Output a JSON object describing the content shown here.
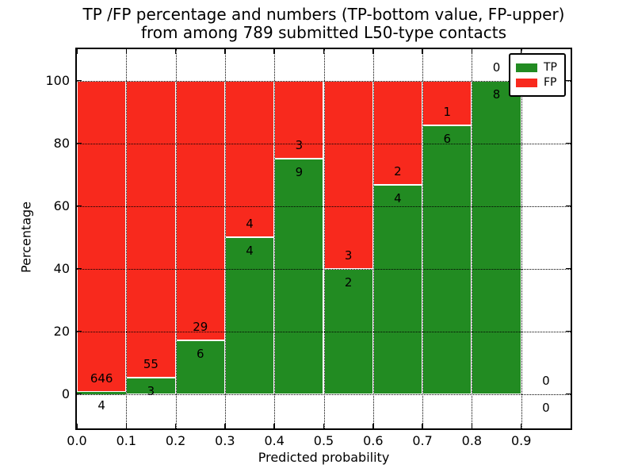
{
  "figure": {
    "title_line1": "TP /FP percentage and numbers (TP-bottom value, FP-upper)",
    "title_line2": "from among 789 submitted L50-type contacts",
    "xlabel": "Predicted probability",
    "ylabel": "Percentage"
  },
  "chart_data": {
    "type": "bar",
    "stacked": true,
    "title": "TP /FP percentage and numbers (TP-bottom value, FP-upper) from among 789 submitted L50-type contacts",
    "xlabel": "Predicted probability",
    "ylabel": "Percentage",
    "total_contacts": 789,
    "xlim": [
      0.0,
      1.0
    ],
    "ylim": [
      -11,
      110
    ],
    "xticks": [
      0.0,
      0.1,
      0.2,
      0.3,
      0.4,
      0.5,
      0.6,
      0.7,
      0.8,
      0.9
    ],
    "yticks": [
      0,
      20,
      40,
      60,
      80,
      100
    ],
    "grid": true,
    "grid_style": "dotted",
    "bar_edge_color": "#ffffff",
    "series": [
      {
        "name": "TP",
        "color": "#228b22"
      },
      {
        "name": "FP",
        "color": "#f8291d"
      }
    ],
    "legend": {
      "position": "upper right",
      "entries": [
        "TP",
        "FP"
      ]
    },
    "bins": [
      {
        "x0": 0.0,
        "x1": 0.1,
        "tp": 4,
        "fp": 646,
        "tp_pct": 0.62
      },
      {
        "x0": 0.1,
        "x1": 0.2,
        "tp": 3,
        "fp": 55,
        "tp_pct": 5.17
      },
      {
        "x0": 0.2,
        "x1": 0.3,
        "tp": 6,
        "fp": 29,
        "tp_pct": 17.14
      },
      {
        "x0": 0.3,
        "x1": 0.4,
        "tp": 4,
        "fp": 4,
        "tp_pct": 50.0
      },
      {
        "x0": 0.4,
        "x1": 0.5,
        "tp": 9,
        "fp": 3,
        "tp_pct": 75.0
      },
      {
        "x0": 0.5,
        "x1": 0.6,
        "tp": 2,
        "fp": 3,
        "tp_pct": 40.0
      },
      {
        "x0": 0.6,
        "x1": 0.7,
        "tp": 4,
        "fp": 2,
        "tp_pct": 66.67
      },
      {
        "x0": 0.7,
        "x1": 0.8,
        "tp": 6,
        "fp": 1,
        "tp_pct": 85.71
      },
      {
        "x0": 0.8,
        "x1": 0.9,
        "tp": 8,
        "fp": 0,
        "tp_pct": 100.0
      },
      {
        "x0": 0.9,
        "x1": 1.0,
        "tp": 0,
        "fp": 0,
        "tp_pct": null
      }
    ]
  }
}
